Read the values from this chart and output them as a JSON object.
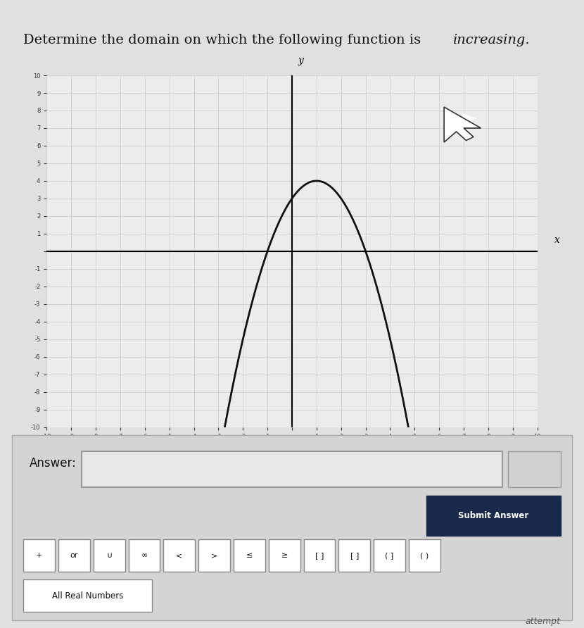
{
  "title_normal": "Determine the domain on which the following function is ",
  "title_italic": "increasing.",
  "title_fontsize": 14,
  "bg_color": "#e0e0e0",
  "panel_color": "#ececec",
  "grid_color": "#c8c8c8",
  "axis_color": "#000000",
  "curve_color": "#111111",
  "xlim": [
    -10,
    10
  ],
  "ylim": [
    -10,
    10
  ],
  "vertex_x": 1,
  "vertex_y": 4,
  "parabola_a": -1,
  "answer_label": "Answer:",
  "submit_btn_text": "Submit Answer",
  "submit_btn_color": "#1a2a4a",
  "submit_btn_text_color": "#ffffff",
  "sym_labels": [
    "+",
    "or",
    "∪",
    "∞",
    "<",
    ">",
    "≤",
    "≥",
    "[ ]",
    "[ ]",
    "( ]",
    "( )"
  ],
  "all_real_btn": "All Real Numbers",
  "attempt_text": "attempt"
}
